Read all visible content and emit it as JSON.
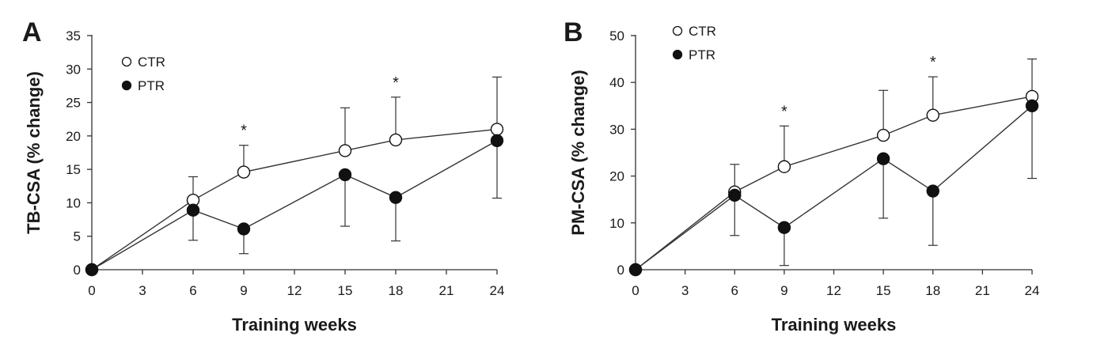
{
  "chart_data": [
    {
      "type": "line",
      "panel_label": "A",
      "xlabel": "Training weeks",
      "ylabel": "TB-CSA (% change)",
      "xlim": [
        0,
        24
      ],
      "ylim": [
        0,
        35
      ],
      "xticks": [
        0,
        3,
        6,
        9,
        12,
        15,
        18,
        21,
        24
      ],
      "yticks": [
        0,
        5,
        10,
        15,
        20,
        25,
        30,
        35
      ],
      "x": [
        0,
        6,
        9,
        15,
        18,
        24
      ],
      "series": [
        {
          "name": "CTR",
          "marker": "open-circle",
          "values": [
            0,
            10.4,
            14.6,
            17.8,
            19.4,
            21.0
          ],
          "error_up": [
            0,
            3.5,
            4.0,
            6.4,
            6.4,
            7.8
          ]
        },
        {
          "name": "PTR",
          "marker": "filled-circle",
          "values": [
            0,
            8.9,
            6.1,
            14.2,
            10.8,
            19.3
          ],
          "error_down": [
            0,
            4.5,
            3.7,
            7.7,
            6.5,
            8.6
          ]
        }
      ],
      "significance": [
        {
          "x": 9,
          "label": "*"
        },
        {
          "x": 18,
          "label": "*"
        }
      ],
      "legend_position": "top-left"
    },
    {
      "type": "line",
      "panel_label": "B",
      "xlabel": "Training weeks",
      "ylabel": "PM-CSA (% change)",
      "xlim": [
        0,
        24
      ],
      "ylim": [
        0,
        50
      ],
      "xticks": [
        0,
        3,
        6,
        9,
        12,
        15,
        18,
        21,
        24
      ],
      "yticks": [
        0,
        10,
        20,
        30,
        40,
        50
      ],
      "x": [
        0,
        6,
        9,
        15,
        18,
        24
      ],
      "series": [
        {
          "name": "CTR",
          "marker": "open-circle",
          "values": [
            0,
            16.6,
            22.0,
            28.7,
            33.0,
            37.0
          ],
          "error_up": [
            0,
            5.9,
            8.7,
            9.6,
            8.2,
            8.0
          ]
        },
        {
          "name": "PTR",
          "marker": "filled-circle",
          "values": [
            0,
            15.9,
            9.0,
            23.7,
            16.8,
            35.0
          ],
          "error_down": [
            0,
            8.6,
            8.1,
            12.7,
            11.6,
            15.5
          ]
        }
      ],
      "significance": [
        {
          "x": 9,
          "label": "*"
        },
        {
          "x": 18,
          "label": "*"
        }
      ],
      "legend_position": "top-left"
    }
  ]
}
